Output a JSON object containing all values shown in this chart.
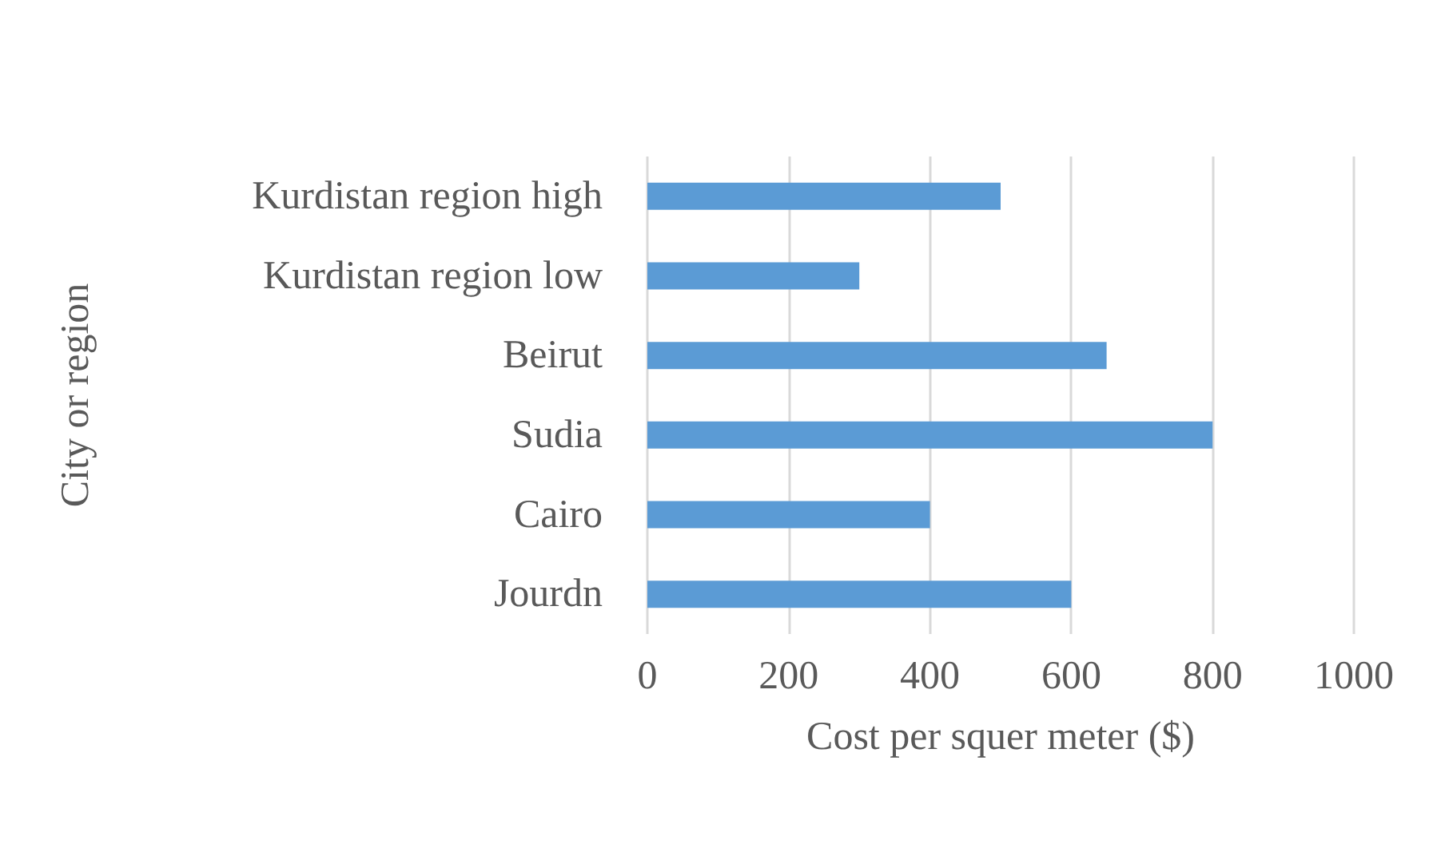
{
  "chart_data": {
    "type": "bar",
    "orientation": "horizontal",
    "xlabel": "Cost per squer meter ($)",
    "ylabel": "City or region",
    "categories": [
      "Kurdistan region high",
      "Kurdistan region low",
      "Beirut",
      "Sudia",
      "Cairo",
      "Jourdn"
    ],
    "values": [
      500,
      300,
      650,
      800,
      400,
      600
    ],
    "color": "#5b9bd5",
    "xlim": [
      0,
      1000
    ],
    "xticks": [
      0,
      200,
      400,
      600,
      800,
      1000
    ],
    "grid": "x"
  }
}
